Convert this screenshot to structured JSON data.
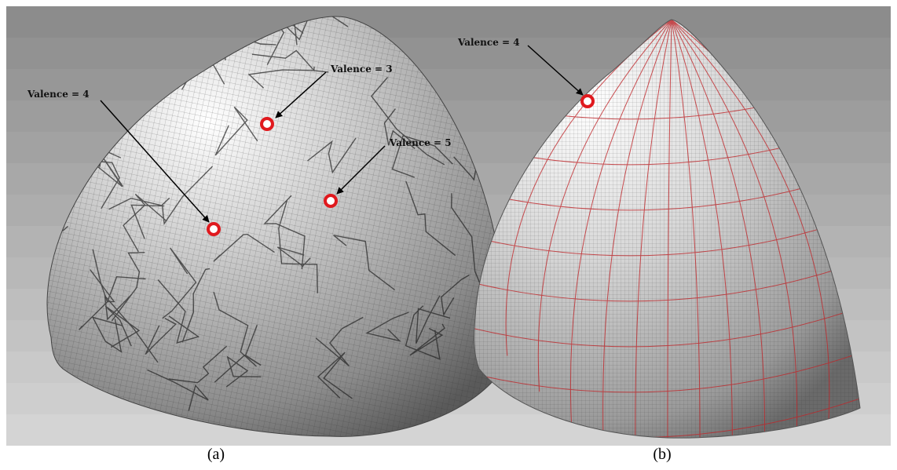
{
  "panels": [
    {
      "label": "(a)",
      "annotations": [
        "Valence = 4",
        "Valence = 3",
        "Valence = 5"
      ]
    },
    {
      "label": "(b)",
      "annotations": [
        "Valence = 4"
      ]
    }
  ]
}
